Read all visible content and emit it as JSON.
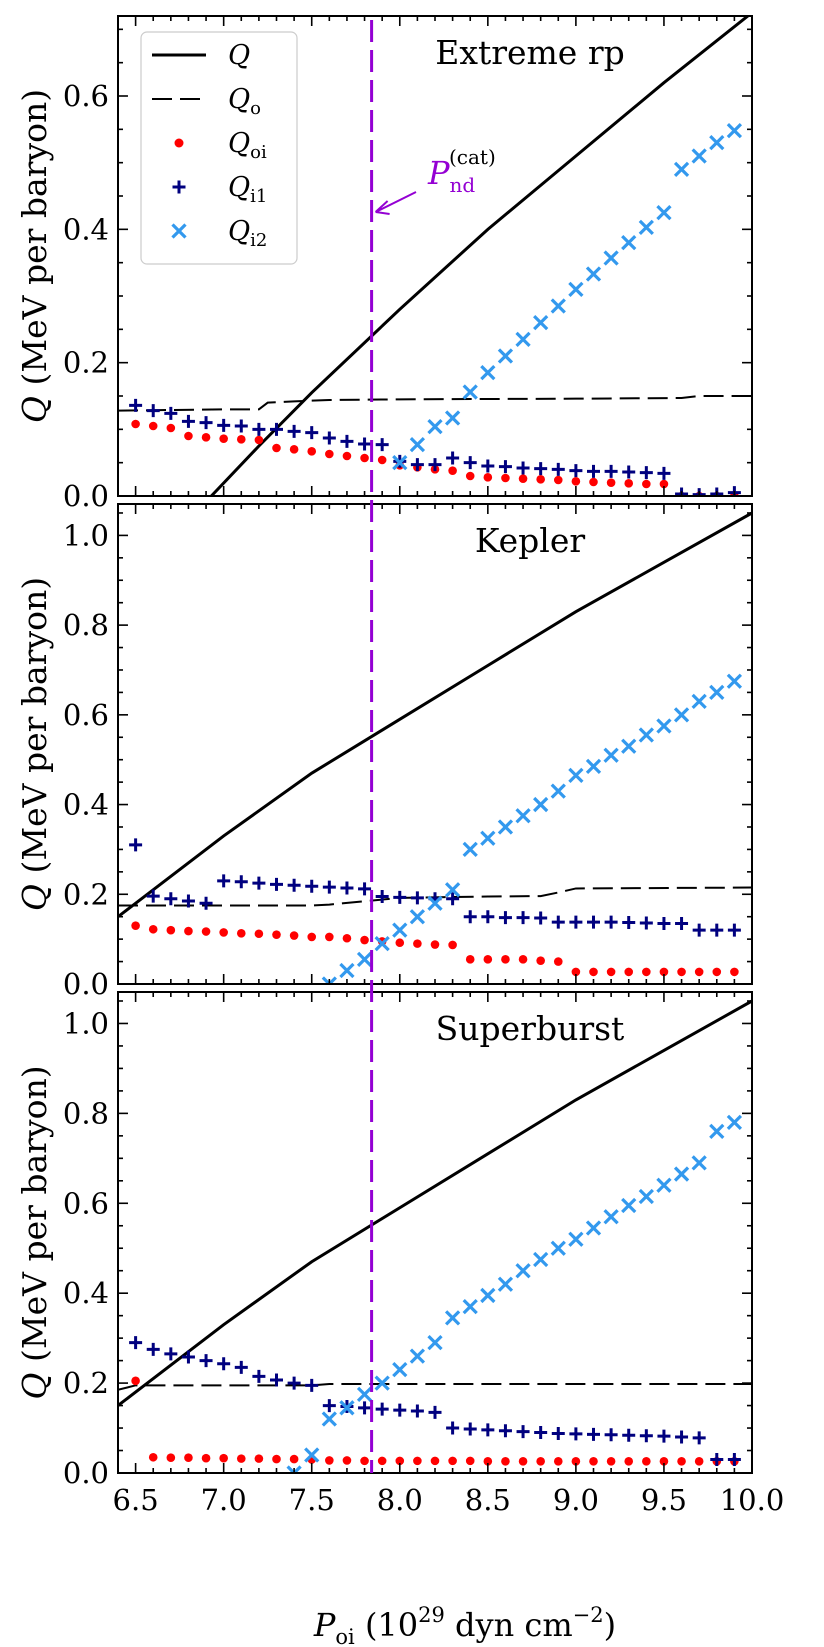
{
  "figure": {
    "xlabel": "P",
    "xlabel_sub": "oi",
    "xlabel_units_open": " (10",
    "xlabel_units_exp": "29",
    "xlabel_units_mid": " dyn cm",
    "xlabel_units_exp2": "−2",
    "xlabel_units_close": ")",
    "ylabel_symbol": "Q",
    "ylabel_units": "(MeV per baryon)",
    "xlim": [
      6.4,
      10.0
    ],
    "xticks": [
      "6.5",
      "7.0",
      "7.5",
      "8.0",
      "8.5",
      "9.0",
      "9.5",
      "10.0"
    ],
    "marker_line": {
      "x": 7.84,
      "color": "#9400D3",
      "label": "P",
      "label_sub": "nd",
      "label_sup": "(cat)"
    },
    "colors": {
      "Q": "#000000",
      "Qo": "#000000",
      "Qoi": "#FF0000",
      "Qi1": "#00007F",
      "Qi2": "#3399EE"
    }
  },
  "legend": {
    "placement": "top-left",
    "items": [
      {
        "key": "Q",
        "symbol": "Q",
        "sub": "",
        "style": "solid-line"
      },
      {
        "key": "Qo",
        "symbol": "Q",
        "sub": "o",
        "style": "dashed-line"
      },
      {
        "key": "Qoi",
        "symbol": "Q",
        "sub": "oi",
        "style": "dot"
      },
      {
        "key": "Qi1",
        "symbol": "Q",
        "sub": "i1",
        "style": "plus"
      },
      {
        "key": "Qi2",
        "symbol": "Q",
        "sub": "i2",
        "style": "x"
      }
    ]
  },
  "chart_data": [
    {
      "type": "line",
      "title": "Extreme rp",
      "ylim": [
        0,
        0.72
      ],
      "yticks": [
        "0.0",
        "0.2",
        "0.4",
        "0.6"
      ],
      "Q": {
        "x": [
          6.93,
          7.2,
          7.5,
          8.0,
          8.5,
          9.0,
          9.5,
          10.0
        ],
        "y": [
          0.0,
          0.075,
          0.155,
          0.28,
          0.4,
          0.51,
          0.62,
          0.725
        ]
      },
      "Qo": {
        "x": [
          6.4,
          7.0,
          7.2,
          7.25,
          7.4,
          7.6,
          8.0,
          9.0,
          9.6,
          9.7,
          10.0
        ],
        "y": [
          0.128,
          0.13,
          0.13,
          0.14,
          0.142,
          0.144,
          0.145,
          0.146,
          0.147,
          0.15,
          0.15
        ]
      },
      "Qoi": {
        "x": [
          6.5,
          6.6,
          6.7,
          6.8,
          6.9,
          7.0,
          7.1,
          7.2,
          7.3,
          7.4,
          7.5,
          7.6,
          7.7,
          7.8,
          7.9,
          8.0,
          8.1,
          8.2,
          8.3,
          8.4,
          8.5,
          8.6,
          8.7,
          8.8,
          8.9,
          9.0,
          9.1,
          9.2,
          9.3,
          9.4,
          9.5,
          9.6,
          9.7,
          9.8,
          9.9
        ],
        "y": [
          0.108,
          0.105,
          0.102,
          0.09,
          0.088,
          0.086,
          0.085,
          0.084,
          0.072,
          0.07,
          0.067,
          0.063,
          0.06,
          0.057,
          0.054,
          0.046,
          0.043,
          0.04,
          0.038,
          0.03,
          0.028,
          0.027,
          0.026,
          0.025,
          0.024,
          0.022,
          0.021,
          0.02,
          0.019,
          0.018,
          0.018,
          0.0,
          0.0,
          0.0,
          0.0
        ]
      },
      "Qi1": {
        "x": [
          6.5,
          6.6,
          6.7,
          6.8,
          6.9,
          7.0,
          7.1,
          7.2,
          7.3,
          7.4,
          7.5,
          7.6,
          7.7,
          7.8,
          7.9,
          8.0,
          8.1,
          8.2,
          8.3,
          8.4,
          8.5,
          8.6,
          8.7,
          8.8,
          8.9,
          9.0,
          9.1,
          9.2,
          9.3,
          9.4,
          9.5,
          9.6,
          9.7,
          9.8,
          9.9
        ],
        "y": [
          0.136,
          0.128,
          0.124,
          0.112,
          0.11,
          0.106,
          0.105,
          0.1,
          0.1,
          0.097,
          0.095,
          0.087,
          0.082,
          0.078,
          0.077,
          0.052,
          0.047,
          0.047,
          0.057,
          0.05,
          0.045,
          0.044,
          0.042,
          0.041,
          0.04,
          0.038,
          0.037,
          0.037,
          0.036,
          0.035,
          0.034,
          0.003,
          0.002,
          0.003,
          0.005
        ]
      },
      "Qi2": {
        "x": [
          8.0,
          8.1,
          8.2,
          8.3,
          8.4,
          8.5,
          8.6,
          8.7,
          8.8,
          8.9,
          9.0,
          9.1,
          9.2,
          9.3,
          9.4,
          9.5,
          9.6,
          9.7,
          9.8,
          9.9
        ],
        "y": [
          0.05,
          0.077,
          0.104,
          0.117,
          0.156,
          0.185,
          0.21,
          0.235,
          0.26,
          0.285,
          0.31,
          0.333,
          0.357,
          0.38,
          0.403,
          0.425,
          0.49,
          0.51,
          0.53,
          0.548
        ]
      }
    },
    {
      "type": "line",
      "title": "Kepler",
      "ylim": [
        0,
        1.07
      ],
      "yticks": [
        "0.0",
        "0.2",
        "0.4",
        "0.6",
        "0.8",
        "1.0"
      ],
      "Q": {
        "x": [
          6.4,
          7.0,
          7.5,
          8.0,
          8.5,
          9.0,
          9.5,
          10.0
        ],
        "y": [
          0.15,
          0.33,
          0.47,
          0.59,
          0.71,
          0.83,
          0.94,
          1.05
        ]
      },
      "Qo": {
        "x": [
          6.4,
          7.5,
          7.6,
          8.0,
          8.5,
          8.8,
          8.9,
          9.0,
          10.0
        ],
        "y": [
          0.175,
          0.175,
          0.177,
          0.192,
          0.195,
          0.196,
          0.204,
          0.213,
          0.215
        ]
      },
      "Qoi": {
        "x": [
          6.5,
          6.6,
          6.7,
          6.8,
          6.9,
          7.0,
          7.1,
          7.2,
          7.3,
          7.4,
          7.5,
          7.6,
          7.7,
          7.8,
          7.9,
          8.0,
          8.1,
          8.2,
          8.3,
          8.4,
          8.5,
          8.6,
          8.7,
          8.8,
          8.9,
          9.0,
          9.1,
          9.2,
          9.3,
          9.4,
          9.5,
          9.6,
          9.7,
          9.8,
          9.9
        ],
        "y": [
          0.13,
          0.122,
          0.12,
          0.118,
          0.117,
          0.115,
          0.113,
          0.112,
          0.11,
          0.108,
          0.105,
          0.105,
          0.102,
          0.098,
          0.095,
          0.092,
          0.09,
          0.088,
          0.087,
          0.055,
          0.055,
          0.055,
          0.055,
          0.052,
          0.05,
          0.027,
          0.027,
          0.027,
          0.027,
          0.027,
          0.027,
          0.027,
          0.027,
          0.027,
          0.027
        ]
      },
      "Qi1": {
        "x": [
          6.5,
          6.6,
          6.7,
          6.8,
          6.9,
          7.0,
          7.1,
          7.2,
          7.3,
          7.4,
          7.5,
          7.6,
          7.7,
          7.8,
          7.9,
          8.0,
          8.1,
          8.2,
          8.3,
          8.4,
          8.5,
          8.6,
          8.7,
          8.8,
          8.9,
          9.0,
          9.1,
          9.2,
          9.3,
          9.4,
          9.5,
          9.6,
          9.7,
          9.8,
          9.9
        ],
        "y": [
          0.31,
          0.196,
          0.19,
          0.185,
          0.18,
          0.23,
          0.228,
          0.225,
          0.222,
          0.22,
          0.218,
          0.216,
          0.214,
          0.212,
          0.195,
          0.193,
          0.192,
          0.19,
          0.19,
          0.15,
          0.15,
          0.148,
          0.148,
          0.147,
          0.138,
          0.138,
          0.138,
          0.138,
          0.137,
          0.136,
          0.135,
          0.135,
          0.12,
          0.12,
          0.12
        ]
      },
      "Qi2": {
        "x": [
          7.6,
          7.7,
          7.8,
          7.9,
          8.0,
          8.1,
          8.2,
          8.3,
          8.4,
          8.5,
          8.6,
          8.7,
          8.8,
          8.9,
          9.0,
          9.1,
          9.2,
          9.3,
          9.4,
          9.5,
          9.6,
          9.7,
          9.8,
          9.9
        ],
        "y": [
          0.0,
          0.03,
          0.055,
          0.09,
          0.12,
          0.15,
          0.18,
          0.21,
          0.3,
          0.325,
          0.35,
          0.375,
          0.4,
          0.43,
          0.465,
          0.485,
          0.51,
          0.53,
          0.555,
          0.575,
          0.6,
          0.63,
          0.65,
          0.675
        ]
      }
    },
    {
      "type": "line",
      "title": "Superburst",
      "ylim": [
        0,
        1.07
      ],
      "yticks": [
        "0.0",
        "0.2",
        "0.4",
        "0.6",
        "0.8",
        "1.0"
      ],
      "Q": {
        "x": [
          6.4,
          7.0,
          7.5,
          8.0,
          8.5,
          9.0,
          9.5,
          10.0
        ],
        "y": [
          0.15,
          0.33,
          0.47,
          0.59,
          0.71,
          0.83,
          0.94,
          1.05
        ]
      },
      "Qo": {
        "x": [
          6.4,
          6.5,
          7.5,
          7.6,
          10.0
        ],
        "y": [
          0.185,
          0.195,
          0.195,
          0.198,
          0.198
        ]
      },
      "Qoi": {
        "x": [
          6.5,
          6.6,
          6.7,
          6.8,
          6.9,
          7.0,
          7.1,
          7.2,
          7.3,
          7.4,
          7.5,
          7.6,
          7.7,
          7.8,
          7.9,
          8.0,
          8.1,
          8.2,
          8.3,
          8.4,
          8.5,
          8.6,
          8.7,
          8.8,
          8.9,
          9.0,
          9.1,
          9.2,
          9.3,
          9.4,
          9.5,
          9.6,
          9.7,
          9.8,
          9.9
        ],
        "y": [
          0.205,
          0.035,
          0.034,
          0.034,
          0.033,
          0.033,
          0.032,
          0.032,
          0.031,
          0.031,
          0.03,
          0.028,
          0.028,
          0.027,
          0.027,
          0.027,
          0.027,
          0.027,
          0.027,
          0.027,
          0.026,
          0.026,
          0.026,
          0.026,
          0.026,
          0.026,
          0.026,
          0.026,
          0.026,
          0.026,
          0.026,
          0.026,
          0.026,
          0.026,
          0.026
        ]
      },
      "Qi1": {
        "x": [
          6.5,
          6.6,
          6.7,
          6.8,
          6.9,
          7.0,
          7.1,
          7.2,
          7.3,
          7.4,
          7.5,
          7.6,
          7.7,
          7.8,
          7.9,
          8.0,
          8.1,
          8.2,
          8.3,
          8.4,
          8.5,
          8.6,
          8.7,
          8.8,
          8.9,
          9.0,
          9.1,
          9.2,
          9.3,
          9.4,
          9.5,
          9.6,
          9.7,
          9.8,
          9.9
        ],
        "y": [
          0.29,
          0.275,
          0.265,
          0.258,
          0.25,
          0.243,
          0.235,
          0.215,
          0.207,
          0.2,
          0.195,
          0.15,
          0.148,
          0.145,
          0.142,
          0.14,
          0.138,
          0.135,
          0.1,
          0.098,
          0.096,
          0.094,
          0.092,
          0.09,
          0.088,
          0.087,
          0.086,
          0.085,
          0.084,
          0.083,
          0.082,
          0.08,
          0.078,
          0.03,
          0.03
        ]
      },
      "Qi2": {
        "x": [
          7.4,
          7.5,
          7.6,
          7.7,
          7.8,
          7.9,
          8.0,
          8.1,
          8.2,
          8.3,
          8.4,
          8.5,
          8.6,
          8.7,
          8.8,
          8.9,
          9.0,
          9.1,
          9.2,
          9.3,
          9.4,
          9.5,
          9.6,
          9.7,
          9.8,
          9.9
        ],
        "y": [
          0.0,
          0.04,
          0.12,
          0.145,
          0.175,
          0.2,
          0.23,
          0.26,
          0.29,
          0.345,
          0.37,
          0.395,
          0.42,
          0.45,
          0.475,
          0.5,
          0.52,
          0.545,
          0.57,
          0.595,
          0.615,
          0.64,
          0.665,
          0.69,
          0.76,
          0.78
        ]
      }
    }
  ]
}
